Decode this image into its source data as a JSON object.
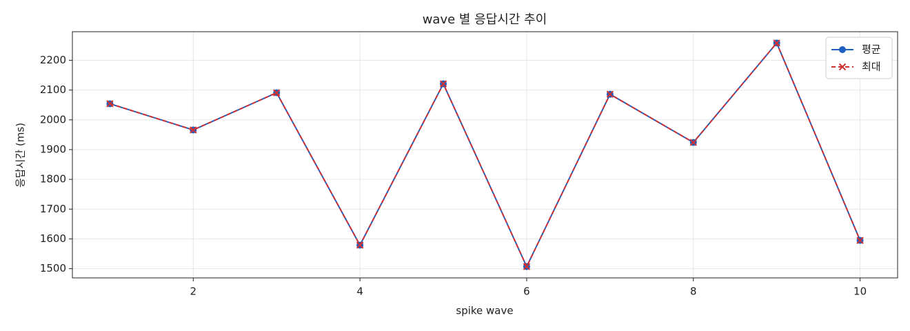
{
  "chart_data": {
    "type": "line",
    "title": "wave 별 응답시간 추이",
    "x_label": "spike wave",
    "y_label": "응답시간 (ms)",
    "x": [
      1,
      2,
      3,
      4,
      5,
      6,
      7,
      8,
      9,
      10
    ],
    "series": [
      {
        "name": "평균",
        "color": "#1f5fbf",
        "marker": "circle",
        "dash": false,
        "values": [
          2054,
          1966,
          2091,
          1579,
          2121,
          1507,
          2086,
          1924,
          2258,
          1595
        ]
      },
      {
        "name": "최대",
        "color": "#d03030",
        "marker": "x",
        "dash": true,
        "values": [
          2054,
          1966,
          2091,
          1579,
          2121,
          1507,
          2086,
          1924,
          2258,
          1595
        ]
      }
    ],
    "xlim": [
      0.55,
      10.45
    ],
    "xticks": [
      2,
      4,
      6,
      8,
      10
    ],
    "ylim": [
      1469,
      2296
    ],
    "yticks": [
      1500,
      1600,
      1700,
      1800,
      1900,
      2000,
      2100,
      2200
    ],
    "grid": true,
    "legend_position": "upper-right"
  }
}
